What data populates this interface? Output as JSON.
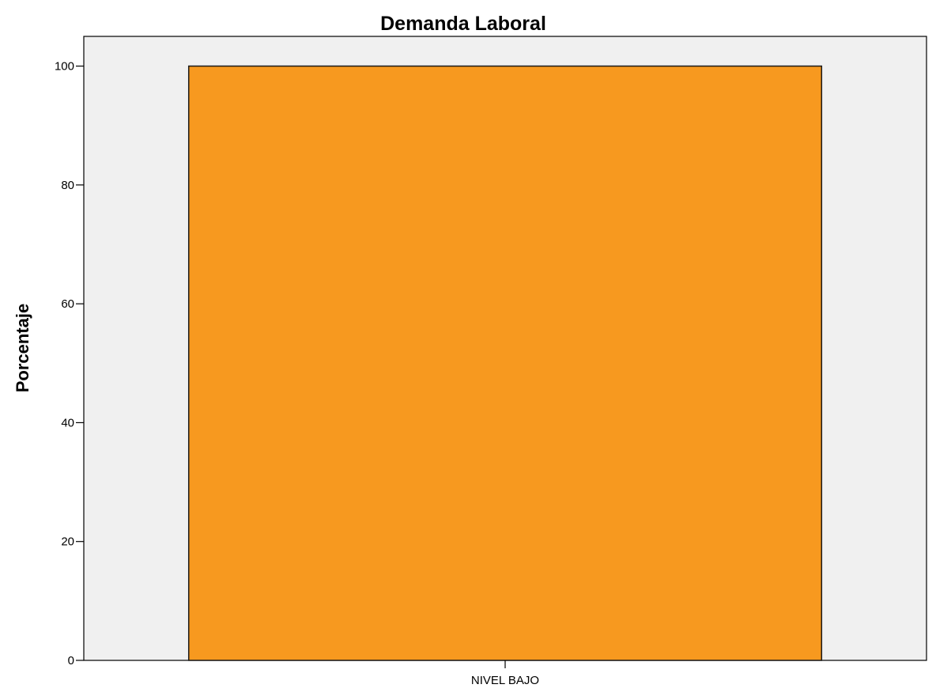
{
  "chart_data": {
    "type": "bar",
    "title": "Demanda Laboral",
    "xlabel": "",
    "ylabel": "Porcentaje",
    "categories": [
      "NIVEL BAJO"
    ],
    "values": [
      100
    ],
    "ylim": [
      0,
      105
    ],
    "yticks": [
      0,
      20,
      40,
      60,
      80,
      100
    ],
    "grid": false,
    "legend": "none",
    "colors": {
      "bar_fill": "#f7991f",
      "bar_stroke": "#1a1a1a",
      "plot_background": "#f0f0f0",
      "axis": "#000000"
    }
  }
}
